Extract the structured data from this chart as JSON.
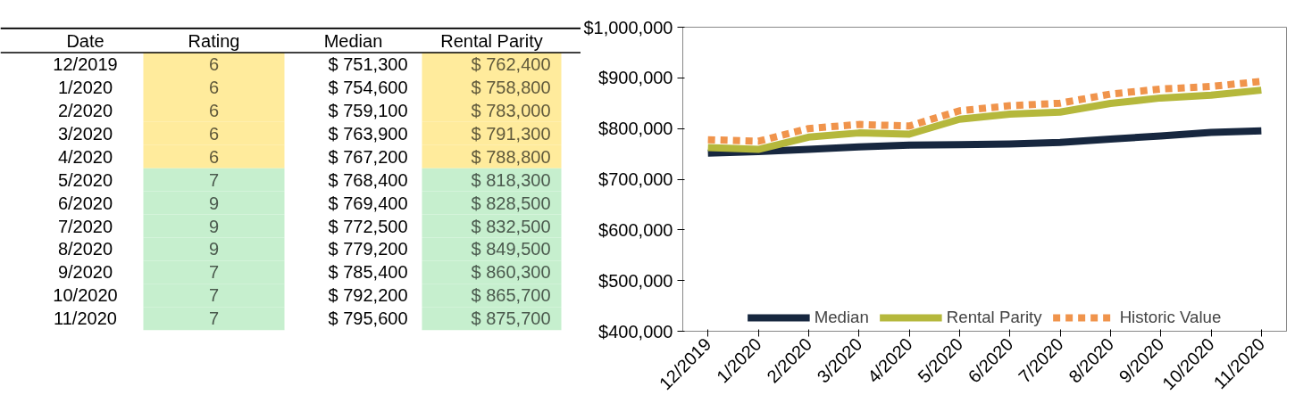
{
  "chart_data": [
    {
      "type": "other",
      "xlabel": "Date",
      "categories": [
        "12/2019",
        "1/2020",
        "2/2020",
        "3/2020",
        "4/2020",
        "5/2020",
        "6/2020",
        "7/2020",
        "8/2020",
        "9/2020",
        "10/2020",
        "11/2020"
      ],
      "series": [
        {
          "name": "Rating",
          "values": [
            6,
            6,
            6,
            6,
            6,
            7,
            9,
            9,
            9,
            7,
            7,
            7
          ],
          "value_labels": [
            "6",
            "6",
            "6",
            "6",
            "6",
            "7",
            "9",
            "9",
            "9",
            "7",
            "7",
            "7"
          ],
          "colors": [
            "#ffeb9c",
            "#ffeb9c",
            "#ffeb9c",
            "#ffeb9c",
            "#ffeb9c",
            "#c6efce",
            "#c6efce",
            "#c6efce",
            "#c6efce",
            "#c6efce",
            "#c6efce",
            "#c6efce"
          ]
        },
        {
          "name": "Median",
          "color": "#000000",
          "values": [
            751300,
            754600,
            759100,
            763900,
            767200,
            768400,
            769400,
            772500,
            779200,
            785400,
            792200,
            795600
          ],
          "value_labels": [
            "$ 751,300",
            "$ 754,600",
            "$ 759,100",
            "$ 763,900",
            "$ 767,200",
            "$ 768,400",
            "$ 769,400",
            "$ 772,500",
            "$ 779,200",
            "$ 785,400",
            "$ 792,200",
            "$ 795,600"
          ]
        },
        {
          "name": "Rental Parity",
          "values": [
            762400,
            758800,
            783000,
            791300,
            788800,
            818300,
            828500,
            832500,
            849500,
            860300,
            865700,
            875700
          ],
          "value_labels": [
            "$ 762,400",
            "$ 758,800",
            "$ 783,000",
            "$ 791,300",
            "$ 788,800",
            "$ 818,300",
            "$ 828,500",
            "$ 832,500",
            "$ 849,500",
            "$ 860,300",
            "$ 865,700",
            "$ 875,700"
          ],
          "colors": [
            "#ffeb9c",
            "#ffeb9c",
            "#ffeb9c",
            "#ffeb9c",
            "#ffeb9c",
            "#c6efce",
            "#c6efce",
            "#c6efce",
            "#c6efce",
            "#c6efce",
            "#c6efce",
            "#c6efce"
          ]
        }
      ]
    },
    {
      "type": "line",
      "legend": "bottom",
      "grid": false,
      "categories": [
        "12/2019",
        "1/2020",
        "2/2020",
        "3/2020",
        "4/2020",
        "5/2020",
        "6/2020",
        "7/2020",
        "8/2020",
        "9/2020",
        "10/2020",
        "11/2020"
      ],
      "ylim": [
        400000,
        1000000
      ],
      "yticks": [
        {
          "value": 400000,
          "label": "$400,000"
        },
        {
          "value": 500000,
          "label": "$500,000"
        },
        {
          "value": 600000,
          "label": "$600,000"
        },
        {
          "value": 700000,
          "label": "$700,000"
        },
        {
          "value": 800000,
          "label": "$800,000"
        },
        {
          "value": 900000,
          "label": "$900,000"
        },
        {
          "value": 1000000,
          "label": "$1,000,000"
        }
      ],
      "series": [
        {
          "name": "Median",
          "color": "#17273f",
          "line_style": "solid",
          "values": [
            751300,
            754600,
            759100,
            763900,
            767200,
            768400,
            769400,
            772500,
            779200,
            785400,
            792200,
            795600
          ]
        },
        {
          "name": "Rental Parity",
          "color": "#b5b83c",
          "line_style": "solid",
          "values": [
            762400,
            758800,
            783000,
            791300,
            788800,
            818300,
            828500,
            832500,
            849500,
            860300,
            865700,
            875700
          ]
        },
        {
          "name": "Historic Value",
          "color": "#f0944c",
          "line_style": "dashed",
          "values": [
            778000,
            775000,
            800000,
            808000,
            805000,
            835000,
            845000,
            850000,
            868000,
            878000,
            883000,
            893000
          ]
        }
      ]
    }
  ]
}
